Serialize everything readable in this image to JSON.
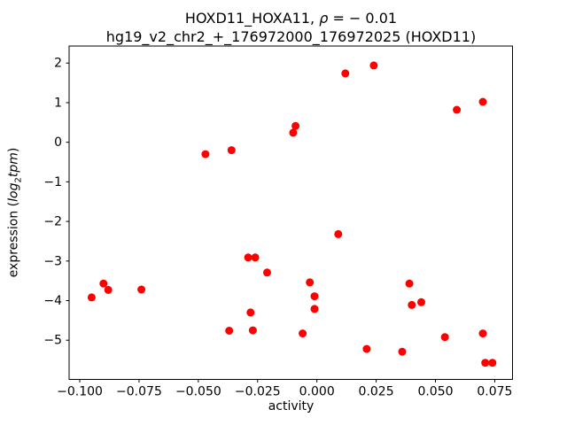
{
  "figure": {
    "title_line1": {
      "prefix": "HOXD11_HOXA11, ",
      "rho": "ρ",
      "suffix": " = − 0.01"
    },
    "title_line2": "hg19_v2_chr2_+_176972000_176972025 (HOXD11)",
    "xlabel": "activity",
    "ylabel": {
      "prefix": "expression (",
      "log": "log",
      "sub": "2",
      "tpm": "tpm",
      "suffix": ")"
    }
  },
  "chart_data": {
    "type": "scatter",
    "title": "HOXD11_HOXA11, ρ = −0.01",
    "subtitle": "hg19_v2_chr2_+_176972000_176972025 (HOXD11)",
    "xlabel": "activity",
    "ylabel": "expression (log2 tpm)",
    "legend": "none",
    "grid": false,
    "marker_color": "#ff0000",
    "axis_color": "#000000",
    "xlim": [
      -0.1045,
      0.0825
    ],
    "ylim": [
      -5.99,
      2.43
    ],
    "x_ticks": [
      -0.1,
      -0.075,
      -0.05,
      -0.025,
      0.0,
      0.025,
      0.05,
      0.075
    ],
    "x_tick_labels": [
      "−0.100",
      "−0.075",
      "−0.050",
      "−0.025",
      "0.000",
      "0.025",
      "0.050",
      "0.075"
    ],
    "y_ticks": [
      2,
      1,
      0,
      -1,
      -2,
      -3,
      -4,
      -5
    ],
    "y_tick_labels": [
      "2",
      "1",
      "0",
      "−1",
      "−2",
      "−3",
      "−4",
      "−5"
    ],
    "points": [
      [
        -0.095,
        -3.92
      ],
      [
        -0.09,
        -3.57
      ],
      [
        -0.088,
        -3.73
      ],
      [
        -0.074,
        -3.72
      ],
      [
        -0.047,
        -0.3
      ],
      [
        -0.037,
        -4.76
      ],
      [
        -0.036,
        -0.2
      ],
      [
        -0.029,
        -2.91
      ],
      [
        -0.028,
        -4.3
      ],
      [
        -0.027,
        -4.75
      ],
      [
        -0.026,
        -2.91
      ],
      [
        -0.021,
        -3.29
      ],
      [
        -0.01,
        0.24
      ],
      [
        -0.009,
        0.41
      ],
      [
        -0.006,
        -4.83
      ],
      [
        -0.003,
        -3.54
      ],
      [
        -0.001,
        -3.89
      ],
      [
        -0.001,
        -4.21
      ],
      [
        0.009,
        -2.32
      ],
      [
        0.012,
        1.74
      ],
      [
        0.021,
        -5.22
      ],
      [
        0.024,
        1.94
      ],
      [
        0.036,
        -5.29
      ],
      [
        0.039,
        -3.57
      ],
      [
        0.04,
        -4.11
      ],
      [
        0.044,
        -4.04
      ],
      [
        0.054,
        -4.92
      ],
      [
        0.059,
        0.82
      ],
      [
        0.07,
        1.02
      ],
      [
        0.07,
        -4.83
      ],
      [
        0.071,
        -5.57
      ],
      [
        0.074,
        -5.57
      ]
    ]
  }
}
